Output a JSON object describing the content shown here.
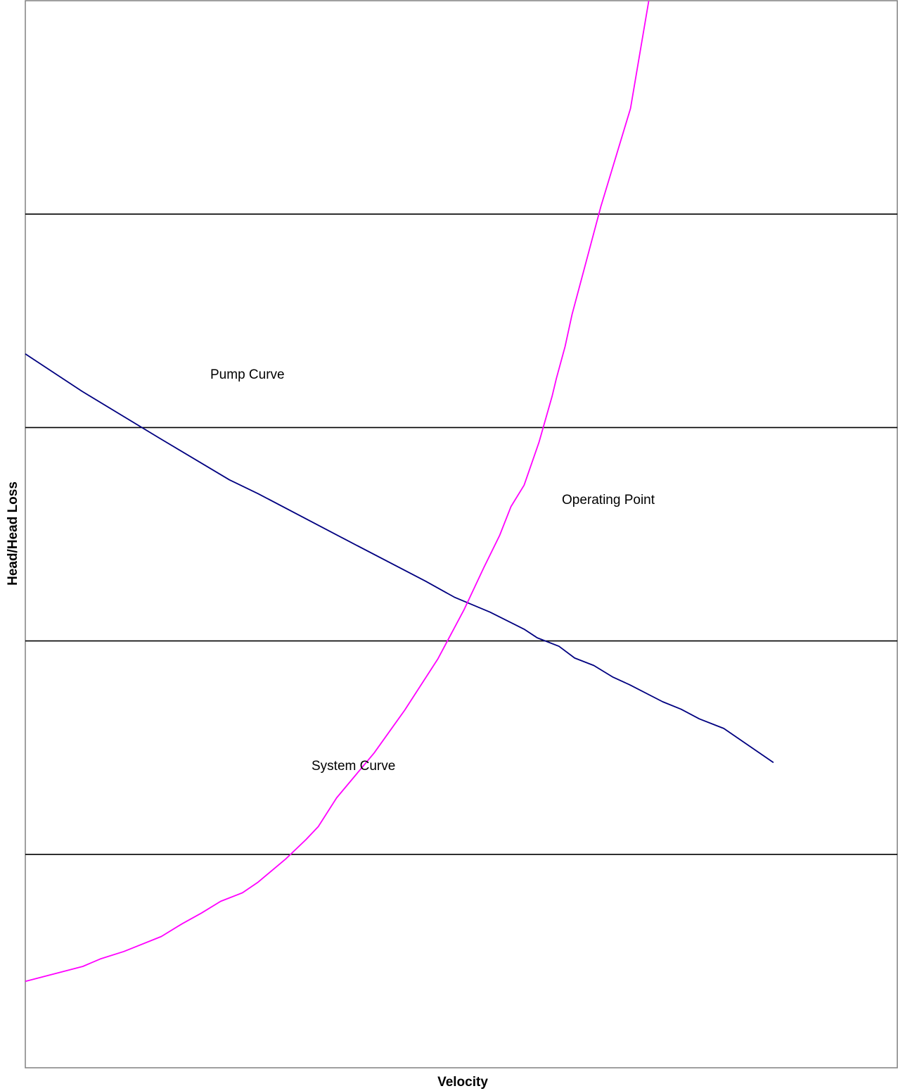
{
  "chart_data": {
    "type": "line",
    "title": "",
    "xlabel": "Velocity",
    "ylabel": "Head/Head Loss",
    "xlim": [
      0,
      100
    ],
    "ylim": [
      0,
      100
    ],
    "grid": "horizontal",
    "legend": "none",
    "series": [
      {
        "key": "pump",
        "color": "#000080",
        "x": [
          0,
          6.5,
          15.4,
          23.4,
          26.7,
          36.5,
          45.9,
          49.2,
          53.3,
          57.2,
          58.7,
          61.2,
          63.0,
          65.2,
          67.4,
          69.3,
          73.1,
          75.2,
          77.3,
          80.1,
          85.8
        ],
        "y": [
          66.9,
          63.4,
          59.0,
          55.1,
          53.8,
          49.6,
          45.6,
          44.1,
          42.7,
          41.1,
          40.3,
          39.5,
          38.4,
          37.7,
          36.6,
          35.9,
          34.3,
          33.6,
          32.7,
          31.8,
          28.6
        ]
      },
      {
        "key": "system",
        "color": "#FF00FF",
        "x": [
          0,
          6.6,
          8.6,
          11.3,
          15.6,
          18.0,
          20.2,
          22.4,
          24.9,
          26.7,
          29.9,
          32.2,
          33.6,
          35.7,
          40.0,
          43.5,
          47.3,
          50.3,
          52.6,
          54.4,
          55.7,
          57.2,
          58.9,
          60.4,
          60.9,
          61.9,
          62.7,
          64.5,
          66.0,
          69.4,
          71.5
        ],
        "y": [
          8.1,
          9.5,
          10.2,
          10.9,
          12.3,
          13.5,
          14.5,
          15.6,
          16.4,
          17.4,
          19.6,
          21.4,
          22.6,
          25.3,
          29.5,
          33.5,
          38.3,
          42.9,
          46.9,
          49.9,
          52.6,
          54.6,
          58.6,
          62.9,
          64.6,
          67.6,
          70.6,
          76.1,
          80.7,
          89.9,
          100.0
        ]
      }
    ],
    "annotations": {
      "pump_label": "Pump Curve",
      "operating_label": "Operating Point",
      "system_label": "System Curve"
    }
  }
}
